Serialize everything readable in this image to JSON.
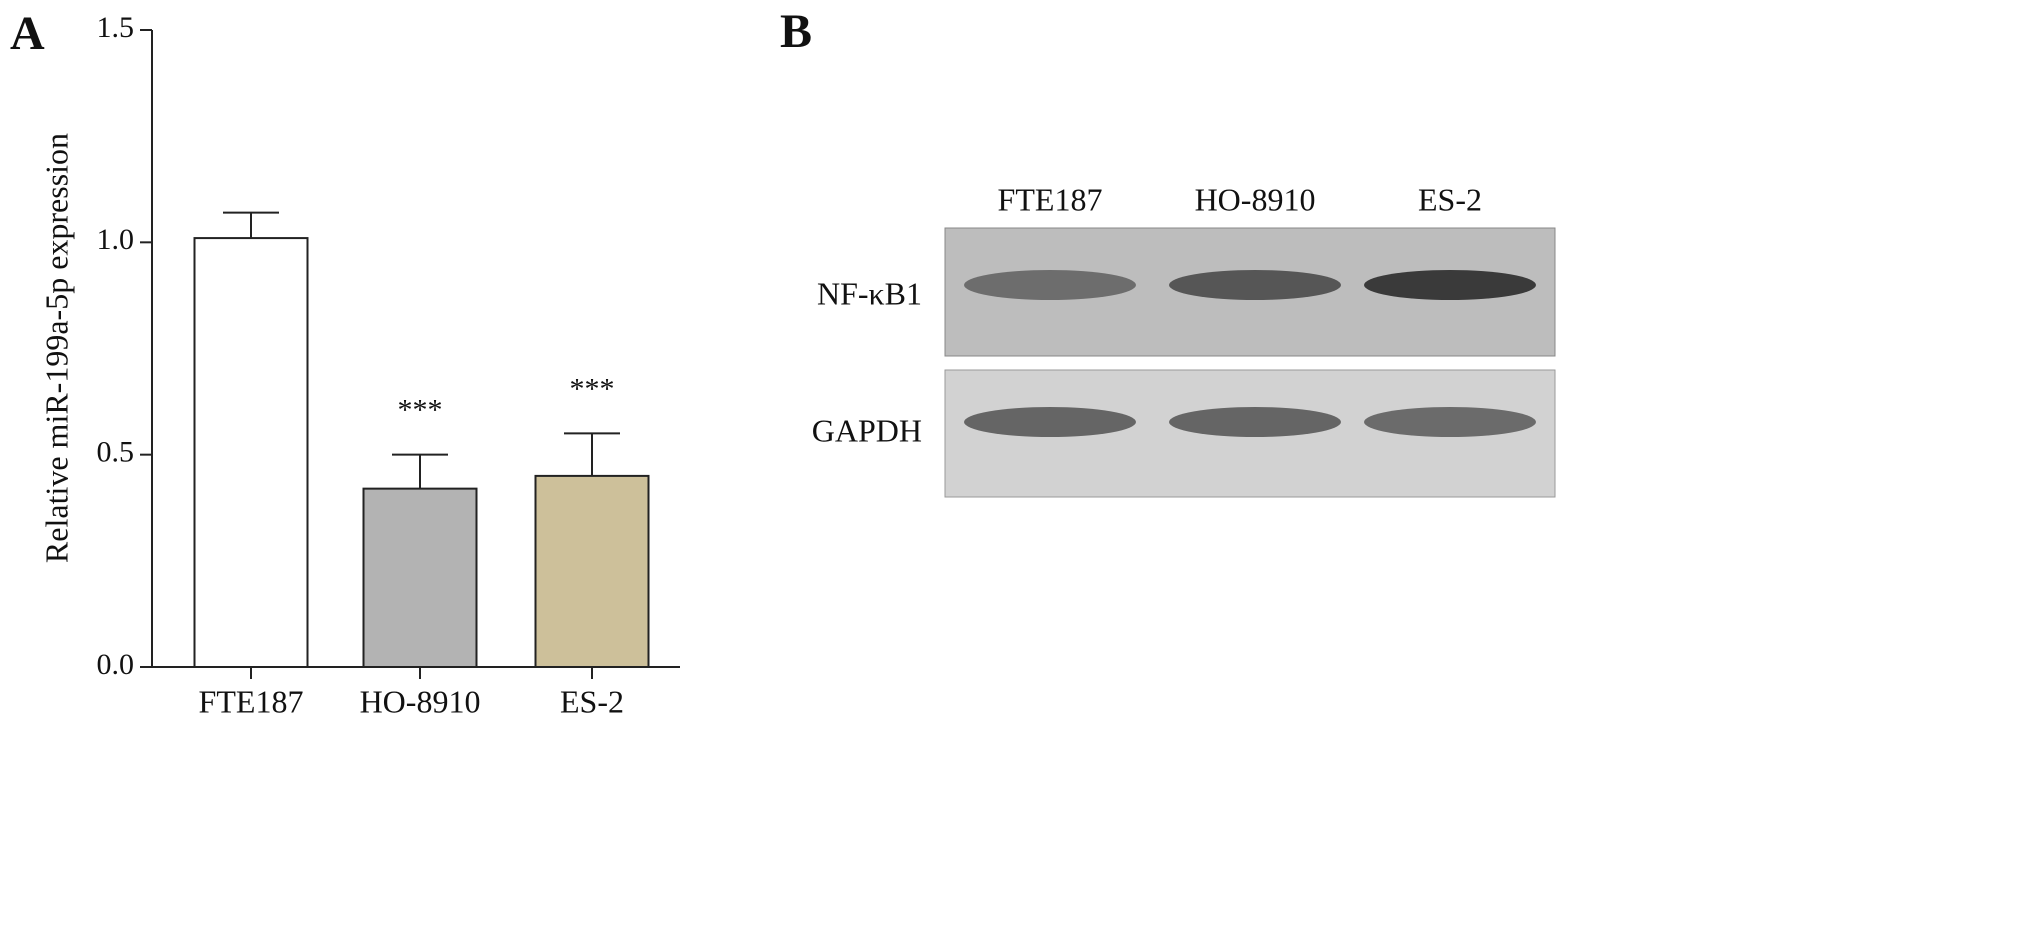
{
  "chart_data": {
    "type": "bar",
    "panel_label": "A",
    "y_label": "Relative miR-199a-5p expression",
    "categories": [
      "FTE187",
      "HO-8910",
      "ES-2"
    ],
    "values": [
      1.01,
      0.42,
      0.45
    ],
    "errors": [
      0.06,
      0.08,
      0.1
    ],
    "colors": [
      "#ffffff",
      "#b3b3b3",
      "#cdc09a"
    ],
    "annotations": [
      null,
      "***",
      "***"
    ],
    "ylim": [
      0,
      1.5
    ],
    "yticks": [
      {
        "value": 0,
        "label": "0.0"
      },
      {
        "value": 0.5,
        "label": "0.5"
      },
      {
        "value": 1,
        "label": "1.0"
      },
      {
        "value": 1.5,
        "label": "1.5"
      }
    ]
  },
  "blot": {
    "panel_label": "B",
    "lanes": [
      "FTE187",
      "HO-8910",
      "ES-2"
    ],
    "rows": [
      "NF-κB1",
      "GAPDH"
    ]
  }
}
